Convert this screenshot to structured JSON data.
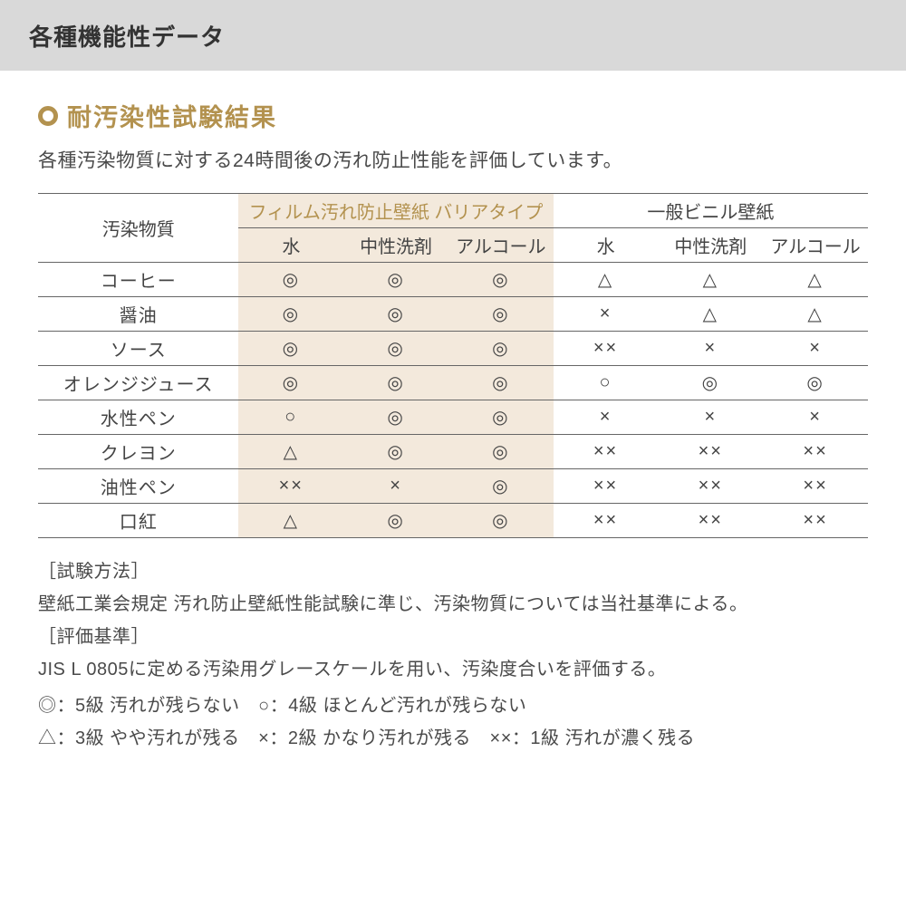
{
  "colors": {
    "header_bg": "#d9d9d9",
    "accent": "#b3924f",
    "tinted_bg": "#f3e9dc",
    "border": "#666666",
    "text": "#444444",
    "body_text": "#4a4a4a"
  },
  "header": {
    "title": "各種機能性データ"
  },
  "section": {
    "title": "耐汚染性試験結果",
    "description": "各種汚染物質に対する24時間後の汚れ防止性能を評価しています。"
  },
  "table": {
    "row_header": "汚染物質",
    "group_a": "フィルム汚れ防止壁紙 バリアタイプ",
    "group_b": "一般ビニル壁紙",
    "sub_cols": [
      "水",
      "中性洗剤",
      "アルコール",
      "水",
      "中性洗剤",
      "アルコール"
    ],
    "rows": [
      {
        "label": "コーヒー",
        "cells": [
          "◎",
          "◎",
          "◎",
          "△",
          "△",
          "△"
        ]
      },
      {
        "label": "醤油",
        "cells": [
          "◎",
          "◎",
          "◎",
          "×",
          "△",
          "△"
        ]
      },
      {
        "label": "ソース",
        "cells": [
          "◎",
          "◎",
          "◎",
          "××",
          "×",
          "×"
        ]
      },
      {
        "label": "オレンジジュース",
        "cells": [
          "◎",
          "◎",
          "◎",
          "○",
          "◎",
          "◎"
        ]
      },
      {
        "label": "水性ペン",
        "cells": [
          "○",
          "◎",
          "◎",
          "×",
          "×",
          "×"
        ]
      },
      {
        "label": "クレヨン",
        "cells": [
          "△",
          "◎",
          "◎",
          "××",
          "××",
          "××"
        ]
      },
      {
        "label": "油性ペン",
        "cells": [
          "××",
          "×",
          "◎",
          "××",
          "××",
          "××"
        ]
      },
      {
        "label": "口紅",
        "cells": [
          "△",
          "◎",
          "◎",
          "××",
          "××",
          "××"
        ]
      }
    ]
  },
  "notes": {
    "method_label": "［試験方法］",
    "method_text": "壁紙工業会規定 汚れ防止壁紙性能試験に準じ、汚染物質については当社基準による。",
    "criteria_label": "［評価基準］",
    "criteria_text": "JIS L 0805に定める汚染用グレースケールを用い、汚染度合いを評価する。",
    "legend1": "◎：5級 汚れが残らない　○：4級 ほとんど汚れが残らない",
    "legend2": "△：3級 やや汚れが残る　×：2級 かなり汚れが残る　××：1級 汚れが濃く残る"
  }
}
